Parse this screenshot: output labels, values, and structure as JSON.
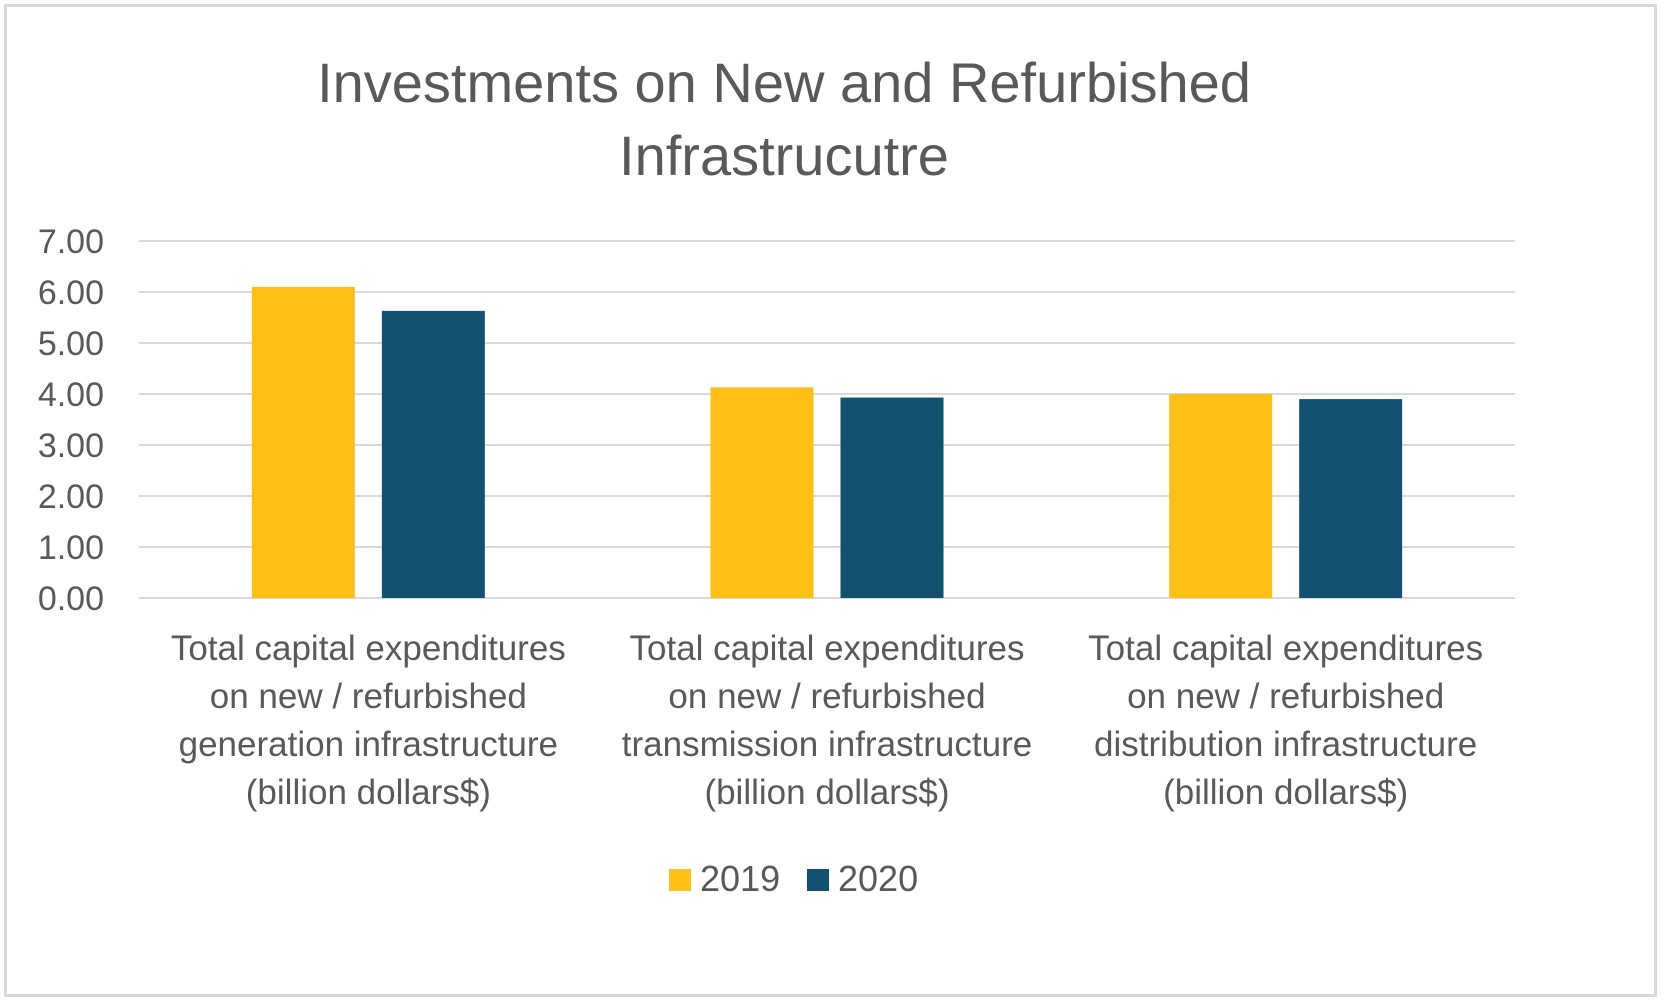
{
  "chart_data": {
    "type": "bar",
    "title": "Investments on New and Refurbished Infrastrucutre",
    "title_lines": [
      "Investments on New and Refurbished",
      "Infrastrucutre"
    ],
    "xlabel": "",
    "ylabel": "",
    "ylim": [
      0,
      7
    ],
    "y_ticks": [
      "0.00",
      "1.00",
      "2.00",
      "3.00",
      "4.00",
      "5.00",
      "6.00",
      "7.00"
    ],
    "grid": true,
    "legend_position": "bottom",
    "categories": [
      "Total capital expenditures on new / refurbished generation infrastructure (billion dollars$)",
      "Total capital expenditures on new / refurbished transmission infrastructure (billion dollars$)",
      "Total capital expenditures on new / refurbished distribution infrastructure (billion dollars$)"
    ],
    "category_lines": [
      [
        "Total capital expenditures",
        "on new / refurbished",
        "generation infrastructure",
        "(billion dollars$)"
      ],
      [
        "Total capital expenditures",
        "on new / refurbished",
        "transmission infrastructure",
        "(billion dollars$)"
      ],
      [
        "Total capital expenditures",
        "on new / refurbished",
        "distribution infrastructure",
        "(billion dollars$)"
      ]
    ],
    "series": [
      {
        "name": "2019",
        "color": "#FCC016",
        "values": [
          6.1,
          4.13,
          4.0
        ]
      },
      {
        "name": "2020",
        "color": "#125170",
        "values": [
          5.63,
          3.93,
          3.9
        ]
      }
    ]
  }
}
